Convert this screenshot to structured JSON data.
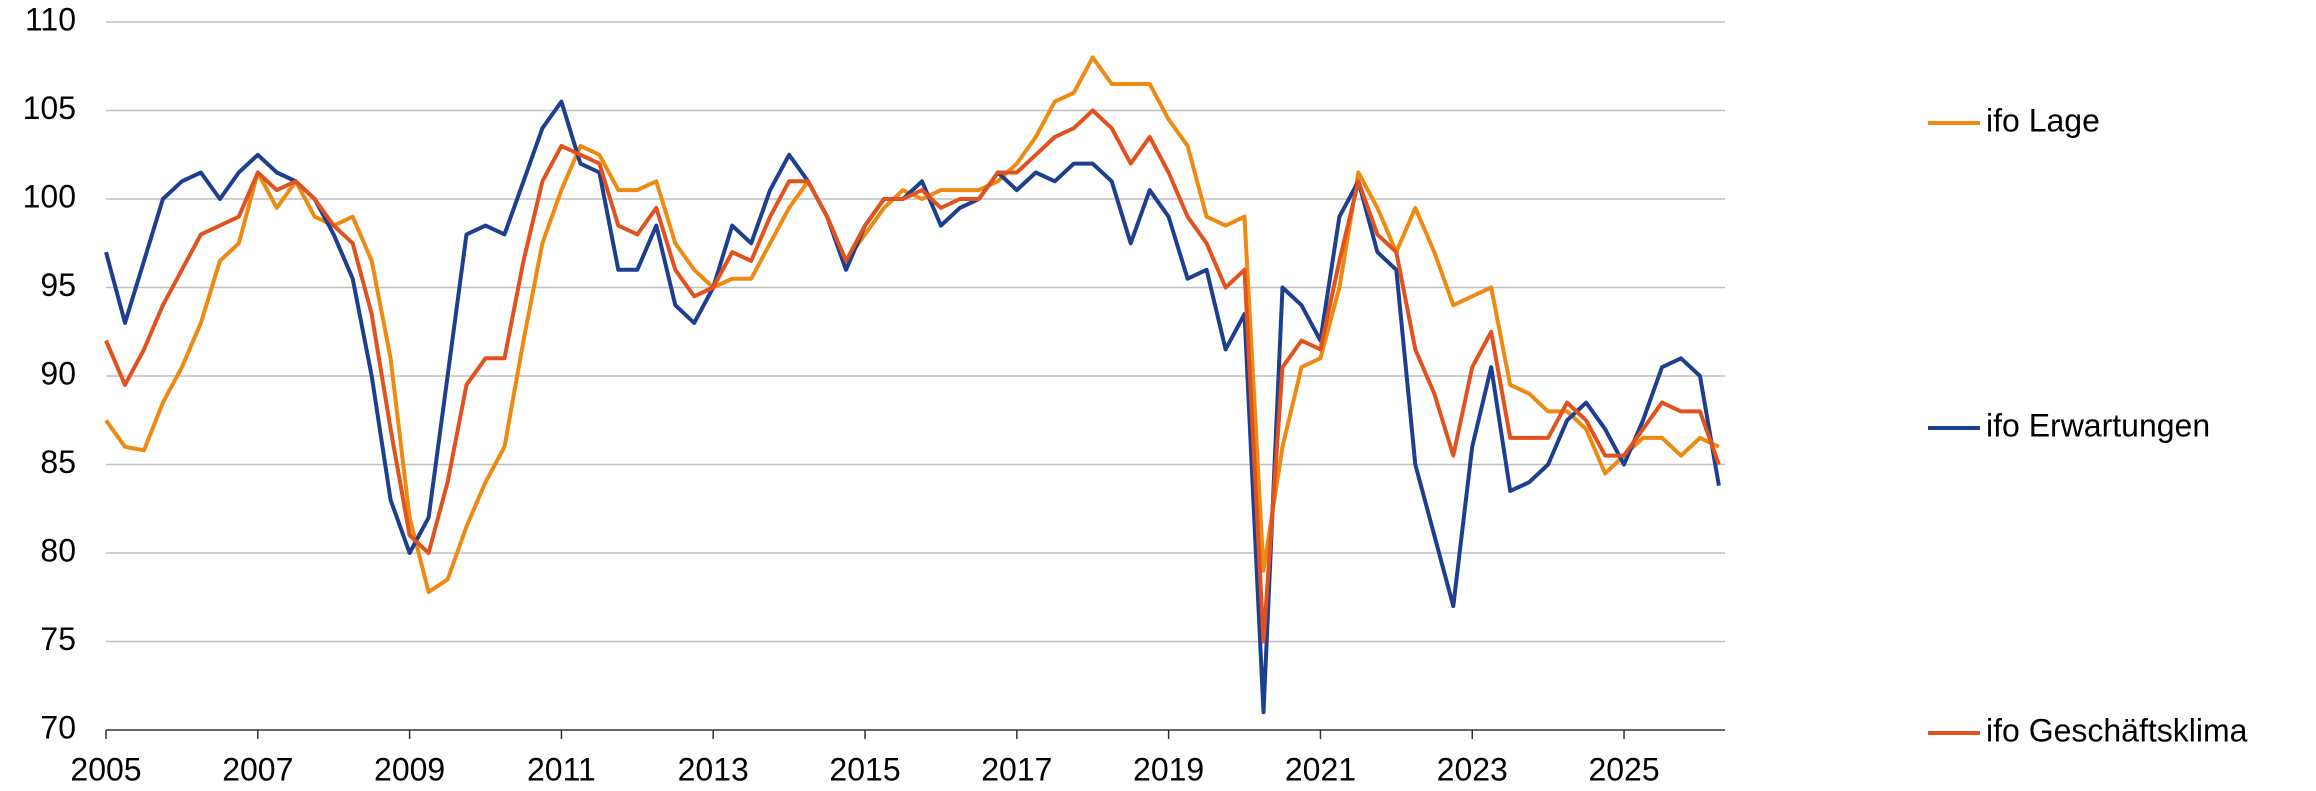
{
  "chart_data": {
    "type": "line",
    "x": [
      2005,
      2005.25,
      2005.5,
      2005.75,
      2006,
      2006.25,
      2006.5,
      2006.75,
      2007,
      2007.25,
      2007.5,
      2007.75,
      2008,
      2008.25,
      2008.5,
      2008.75,
      2009,
      2009.25,
      2009.5,
      2009.75,
      2010,
      2010.25,
      2010.5,
      2010.75,
      2011,
      2011.25,
      2011.5,
      2011.75,
      2012,
      2012.25,
      2012.5,
      2012.75,
      2013,
      2013.25,
      2013.5,
      2013.75,
      2014,
      2014.25,
      2014.5,
      2014.75,
      2015,
      2015.25,
      2015.5,
      2015.75,
      2016,
      2016.25,
      2016.5,
      2016.75,
      2017,
      2017.25,
      2017.5,
      2017.75,
      2018,
      2018.25,
      2018.5,
      2018.75,
      2019,
      2019.25,
      2019.5,
      2019.75,
      2020,
      2020.25,
      2020.5,
      2020.75,
      2021,
      2021.25,
      2021.5,
      2021.75,
      2022,
      2022.25,
      2022.5,
      2022.75,
      2023,
      2023.25,
      2023.5,
      2023.75,
      2024,
      2024.25,
      2024.5,
      2024.75,
      2025,
      2025.25,
      2025.5,
      2025.75,
      2026,
      2026.25
    ],
    "series": [
      {
        "name": "ifo Lage",
        "color": "#ee8a12",
        "values": [
          87.5,
          86,
          85.8,
          88.5,
          90.5,
          93,
          96.5,
          97.5,
          101.5,
          99.5,
          101,
          99,
          98.5,
          99,
          96.5,
          91,
          82,
          77.8,
          78.5,
          81.5,
          84,
          86,
          92,
          97.5,
          100.5,
          103,
          102.5,
          100.5,
          100.5,
          101,
          97.5,
          96,
          95,
          95.5,
          95.5,
          97.5,
          99.5,
          101,
          99,
          96.5,
          98,
          99.5,
          100.5,
          100,
          100.5,
          100.5,
          100.5,
          101,
          102,
          103.5,
          105.5,
          106,
          108,
          106.5,
          106.5,
          106.5,
          104.5,
          103,
          99,
          98.5,
          99,
          79,
          86,
          90.5,
          91,
          95,
          101.5,
          99.5,
          97,
          99.5,
          97,
          94,
          94.5,
          95,
          89.5,
          89,
          88,
          88,
          87,
          84.5,
          85.5,
          86.5,
          86.5,
          85.5,
          86.5,
          86
        ]
      },
      {
        "name": "ifo Erwartungen",
        "color": "#1c3f8f",
        "values": [
          97,
          93,
          96.5,
          100,
          101,
          101.5,
          100,
          101.5,
          102.5,
          101.5,
          101,
          100,
          98,
          95.5,
          90,
          83,
          80,
          82,
          90,
          98,
          98.5,
          98,
          101,
          104,
          105.5,
          102,
          101.5,
          96,
          96,
          98.5,
          94,
          93,
          95,
          98.5,
          97.5,
          100.5,
          102.5,
          101,
          99,
          96,
          98.5,
          100,
          100,
          101,
          98.5,
          99.5,
          100,
          101.5,
          100.5,
          101.5,
          101,
          102,
          102,
          101,
          97.5,
          100.5,
          99,
          95.5,
          96,
          91.5,
          93.5,
          71,
          95,
          94,
          92,
          99,
          101,
          97,
          96,
          85,
          81,
          77,
          86,
          90.5,
          83.5,
          84,
          85,
          87.5,
          88.5,
          87,
          85,
          87.5,
          90.5,
          91,
          90,
          83.8
        ]
      },
      {
        "name": "ifo Geschäftsklima",
        "color": "#e2521e",
        "values": [
          92,
          89.5,
          91.5,
          94,
          96,
          98,
          98.5,
          99,
          101.5,
          100.5,
          101,
          100,
          98.5,
          97.5,
          93.5,
          87,
          81,
          80,
          84,
          89.5,
          91,
          91,
          96.5,
          101,
          103,
          102.5,
          102,
          98.5,
          98,
          99.5,
          96,
          94.5,
          95,
          97,
          96.5,
          99,
          101,
          101,
          99,
          96.5,
          98.5,
          100,
          100,
          100.5,
          99.5,
          100,
          100,
          101.5,
          101.5,
          102.5,
          103.5,
          104,
          105,
          104,
          102,
          103.5,
          101.5,
          99,
          97.5,
          95,
          96,
          75,
          90.5,
          92,
          91.5,
          96.5,
          101,
          98,
          97,
          91.5,
          89,
          85.5,
          90.5,
          92.5,
          86.5,
          86.5,
          86.5,
          88.5,
          87.5,
          85.5,
          85.5,
          87,
          88.5,
          88,
          88,
          85
        ]
      }
    ],
    "xlim": [
      2005,
      2026.33
    ],
    "xticks": [
      2005,
      2007,
      2009,
      2011,
      2013,
      2015,
      2017,
      2019,
      2021,
      2023,
      2025
    ],
    "ylim": [
      70,
      110
    ],
    "yticks": [
      70,
      75,
      80,
      85,
      90,
      95,
      100,
      105,
      110
    ],
    "grid": true
  }
}
